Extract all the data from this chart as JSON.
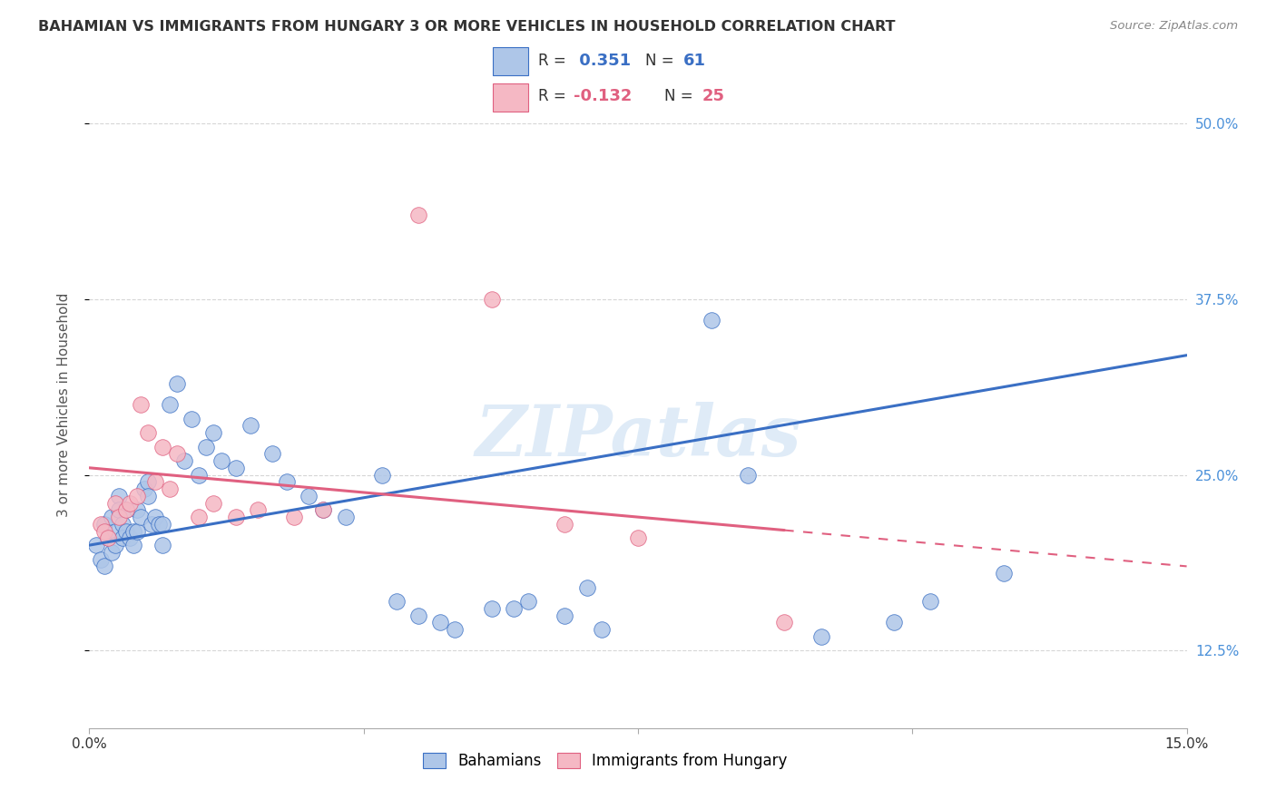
{
  "title": "BAHAMIAN VS IMMIGRANTS FROM HUNGARY 3 OR MORE VEHICLES IN HOUSEHOLD CORRELATION CHART",
  "source": "Source: ZipAtlas.com",
  "ylabel": "3 or more Vehicles in Household",
  "yticks": [
    12.5,
    25.0,
    37.5,
    50.0
  ],
  "ytick_labels": [
    "12.5%",
    "25.0%",
    "37.5%",
    "50.0%"
  ],
  "xmin": 0.0,
  "xmax": 15.0,
  "ymin": 7.0,
  "ymax": 53.0,
  "blue_color": "#aec6e8",
  "pink_color": "#f5b8c4",
  "blue_line_color": "#3a6fc4",
  "pink_line_color": "#e06080",
  "watermark": "ZIPatlas",
  "blue_r": "0.351",
  "blue_n": "61",
  "pink_r": "-0.132",
  "pink_n": "25",
  "blue_trend_y0": 20.0,
  "blue_trend_y1": 33.5,
  "pink_trend_y0": 25.5,
  "pink_trend_y1": 18.5,
  "bahamians_x": [
    0.1,
    0.15,
    0.2,
    0.2,
    0.25,
    0.3,
    0.3,
    0.35,
    0.35,
    0.4,
    0.4,
    0.45,
    0.45,
    0.5,
    0.5,
    0.55,
    0.6,
    0.6,
    0.65,
    0.65,
    0.7,
    0.75,
    0.8,
    0.8,
    0.85,
    0.9,
    0.95,
    1.0,
    1.0,
    1.1,
    1.2,
    1.3,
    1.4,
    1.5,
    1.6,
    1.7,
    1.8,
    2.0,
    2.2,
    2.5,
    2.7,
    3.0,
    3.2,
    3.5,
    4.0,
    4.5,
    5.0,
    5.5,
    6.0,
    6.5,
    7.0,
    9.0,
    10.0,
    11.0,
    11.5,
    12.5,
    8.5,
    4.2,
    4.8,
    5.8,
    6.8
  ],
  "bahamians_y": [
    20.0,
    19.0,
    21.5,
    18.5,
    20.5,
    22.0,
    19.5,
    21.0,
    20.0,
    23.5,
    22.5,
    21.5,
    20.5,
    22.5,
    21.0,
    20.5,
    21.0,
    20.0,
    22.5,
    21.0,
    22.0,
    24.0,
    24.5,
    23.5,
    21.5,
    22.0,
    21.5,
    20.0,
    21.5,
    30.0,
    31.5,
    26.0,
    29.0,
    25.0,
    27.0,
    28.0,
    26.0,
    25.5,
    28.5,
    26.5,
    24.5,
    23.5,
    22.5,
    22.0,
    25.0,
    15.0,
    14.0,
    15.5,
    16.0,
    15.0,
    14.0,
    25.0,
    13.5,
    14.5,
    16.0,
    18.0,
    36.0,
    16.0,
    14.5,
    15.5,
    17.0
  ],
  "hungary_x": [
    0.15,
    0.2,
    0.25,
    0.35,
    0.4,
    0.5,
    0.55,
    0.65,
    0.7,
    0.8,
    0.9,
    1.0,
    1.1,
    1.2,
    1.5,
    1.7,
    2.0,
    2.3,
    2.8,
    3.2,
    4.5,
    5.5,
    6.5,
    7.5,
    9.5
  ],
  "hungary_y": [
    21.5,
    21.0,
    20.5,
    23.0,
    22.0,
    22.5,
    23.0,
    23.5,
    30.0,
    28.0,
    24.5,
    27.0,
    24.0,
    26.5,
    22.0,
    23.0,
    22.0,
    22.5,
    22.0,
    22.5,
    43.5,
    37.5,
    21.5,
    20.5,
    14.5
  ]
}
